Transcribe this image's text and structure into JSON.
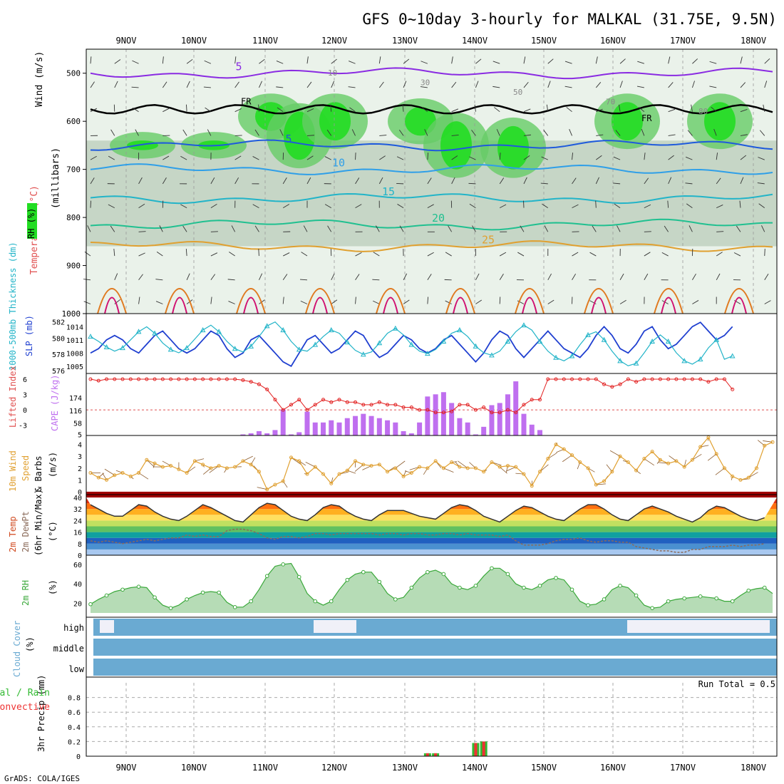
{
  "title": "GFS 0~10day 3-hourly for MALKAL (31.75E, 9.5N)",
  "credit": "GrADS: COLA/IGES",
  "colors": {
    "frame": "#000000",
    "grid": "#aaaaaa",
    "rh_shade": [
      "#eaf2ea",
      "#c6d6c6",
      "#a8c6a8",
      "#66cc66",
      "#22dd22",
      "#00ff00"
    ],
    "temp_contours": "#1e5adc",
    "cape_bar": "#bf6fef",
    "lifted_index": "#e22020",
    "slp": "#1f3fd0",
    "thickness": "#22b4c8",
    "wind10m": "#e0a030",
    "rh2m": "#3aa83a",
    "cloud": "#6aaad2",
    "precip_total": "#33bb33",
    "precip_conv": "#ee3333"
  },
  "time_axis": {
    "labels": [
      "9NOV",
      "10NOV",
      "11NOV",
      "12NOV",
      "13NOV",
      "14NOV",
      "15NOV",
      "16NOV",
      "17NOV",
      "18NOV"
    ]
  },
  "panel_labels": {
    "upper": {
      "rh": "RH (%)",
      "temperature": "Temperature (°C)",
      "wind": "Wind (m/s)",
      "units": "(millibars)"
    },
    "slp": {
      "thickness": "1000-500mb Thickness (dm)",
      "slp": "SLP (mb)"
    },
    "cape": {
      "li": "Lifted Index",
      "cape": "CAPE (J/kg)"
    },
    "wind10": {
      "line1": "10m Wind",
      "line2": "Speed",
      "line3": "& Barbs",
      "unit": "(m/s)"
    },
    "temp2m": {
      "line1": "2m Temp",
      "line2": "2m DewPt",
      "line3": "(6hr Min/Max)",
      "unit": "(°C)"
    },
    "rh2m": {
      "line1": "2m RH",
      "unit": "(%)"
    },
    "cloud": {
      "line1": "Cloud Cover",
      "unit": "(%)",
      "high": "high",
      "middle": "middle",
      "low": "low"
    },
    "precip": {
      "line1": "3hr Precip (mm)",
      "total": "Total / Rain",
      "conv": "Convective",
      "run_total": "Run Total = 0.5"
    }
  },
  "chart_data": [
    {
      "type": "heatmap",
      "name": "pressure-time cross section",
      "y_ticks": [
        500,
        600,
        700,
        800,
        900,
        1000
      ],
      "ylim": [
        1000,
        450
      ],
      "temperature_contours": [
        {
          "label": "5",
          "level_mb": 500
        },
        {
          "label": "5",
          "level_mb": 650
        },
        {
          "label": "10",
          "level_mb": 700
        },
        {
          "label": "15",
          "level_mb": 760
        },
        {
          "label": "20",
          "level_mb": 815
        },
        {
          "label": "25",
          "level_mb": 860
        }
      ],
      "freezing_level_label": "FR",
      "rh_labels": [
        "10",
        "30",
        "50",
        "70",
        "80"
      ]
    },
    {
      "type": "line",
      "name": "SLP and 1000-500mb thickness",
      "left_ticks": [
        576,
        578,
        580,
        582
      ],
      "right_ticks": [
        1005,
        1008,
        1011,
        1014
      ],
      "slp": [
        1008,
        1009,
        1011,
        1012,
        1011,
        1009,
        1008,
        1010,
        1012,
        1013,
        1011,
        1009,
        1008,
        1009,
        1011,
        1013,
        1012,
        1009,
        1007,
        1008,
        1011,
        1012,
        1010,
        1008,
        1006,
        1005,
        1008,
        1011,
        1012,
        1010,
        1008,
        1009,
        1011,
        1013,
        1012,
        1009,
        1007,
        1008,
        1010,
        1012,
        1011,
        1009,
        1008,
        1009,
        1011,
        1012,
        1010,
        1008,
        1006,
        1008,
        1011,
        1013,
        1012,
        1009,
        1007,
        1009,
        1011,
        1013,
        1011,
        1009,
        1008,
        1007,
        1009,
        1012,
        1014,
        1012,
        1009,
        1008,
        1010,
        1013,
        1014,
        1011,
        1009,
        1010,
        1012,
        1014,
        1015,
        1013,
        1011,
        1012,
        1014
      ],
      "thickness": [
        580.2,
        579.6,
        578.9,
        578.4,
        578.8,
        579.8,
        580.8,
        581.4,
        580.6,
        579.4,
        578.6,
        578.2,
        578.8,
        579.9,
        581.0,
        581.6,
        580.8,
        579.6,
        578.7,
        578.3,
        579.0,
        580.2,
        581.5,
        582.0,
        581.0,
        579.6,
        578.6,
        578.4,
        579.2,
        580.2,
        581.0,
        580.6,
        579.5,
        578.5,
        578.0,
        578.3,
        579.4,
        580.6,
        581.2,
        580.4,
        579.2,
        578.4,
        578.1,
        578.6,
        579.6,
        580.6,
        581.0,
        580.2,
        579.0,
        578.2,
        577.9,
        578.4,
        579.6,
        580.8,
        581.6,
        581.0,
        579.6,
        578.4,
        577.6,
        577.2,
        577.8,
        579.2,
        580.4,
        580.8,
        579.8,
        578.4,
        577.2,
        576.6,
        576.9,
        578.2,
        579.6,
        580.4,
        579.6,
        578.2,
        577.2,
        576.8,
        577.4,
        578.8,
        579.8,
        577.4,
        577.8
      ],
      "markers": "triangle"
    },
    {
      "type": "bar",
      "name": "CAPE and Lifted Index",
      "left_ticks": [
        6,
        3,
        0,
        -3
      ],
      "right_ticks": [
        5,
        58,
        116,
        174
      ],
      "cape": [
        0,
        0,
        0,
        0,
        0,
        0,
        0,
        0,
        0,
        0,
        0,
        0,
        0,
        0,
        0,
        0,
        0,
        0,
        0,
        5,
        10,
        20,
        10,
        25,
        120,
        5,
        15,
        110,
        60,
        60,
        70,
        60,
        80,
        90,
        100,
        90,
        80,
        70,
        60,
        20,
        10,
        60,
        180,
        190,
        200,
        150,
        80,
        60,
        5,
        40,
        140,
        150,
        190,
        250,
        100,
        50,
        25,
        0,
        0,
        0,
        0,
        0,
        0,
        0,
        0,
        0,
        0,
        0,
        0,
        0,
        0,
        0,
        0,
        0,
        0,
        0,
        0,
        0,
        0,
        0,
        0
      ],
      "lifted_index": [
        6,
        5.7,
        6,
        6,
        6,
        6,
        6,
        6,
        6,
        6,
        6,
        6,
        6,
        6,
        6,
        6,
        6,
        6,
        6,
        5.8,
        5.5,
        5,
        4,
        2,
        0,
        1,
        2,
        0,
        1,
        2,
        1.5,
        2,
        1.5,
        1.5,
        1,
        1,
        1.5,
        1,
        1,
        0.5,
        0.5,
        0,
        0,
        -0.5,
        -0.5,
        -0.3,
        1,
        1,
        0,
        0.5,
        -0.5,
        -0.5,
        0,
        -0.5,
        1,
        2,
        2,
        6,
        6,
        6,
        6,
        6,
        6,
        6,
        5,
        4.5,
        5,
        6,
        5.5,
        6,
        6,
        6,
        6,
        6,
        6,
        6,
        6,
        5.5,
        6,
        6,
        4
      ]
    },
    {
      "type": "line",
      "name": "10m wind speed",
      "y_ticks": [
        0,
        1,
        2,
        3,
        4
      ],
      "values": [
        1.6,
        1.2,
        1.0,
        1.4,
        1.6,
        1.3,
        1.6,
        2.7,
        2.4,
        2.1,
        2.2,
        1.9,
        1.6,
        2.6,
        2.3,
        2.0,
        2.2,
        2.0,
        2.1,
        2.6,
        2.3,
        1.7,
        0.2,
        0.6,
        0.9,
        2.9,
        2.6,
        1.5,
        2.1,
        1.5,
        0.7,
        1.5,
        1.8,
        2.6,
        2.3,
        2.2,
        2.3,
        1.7,
        2.0,
        1.3,
        1.6,
        2.1,
        2.0,
        2.6,
        2.0,
        2.5,
        2.1,
        2.0,
        2.0,
        1.7,
        2.5,
        2.1,
        2.2,
        2.1,
        1.5,
        0.5,
        1.7,
        2.8,
        4.0,
        3.6,
        3.1,
        2.5,
        2.0,
        0.6,
        0.9,
        1.7,
        3.0,
        2.5,
        1.8,
        2.8,
        3.4,
        2.7,
        2.4,
        2.6,
        2.1,
        2.7,
        3.8,
        4.6,
        3.2,
        2.0,
        1.3,
        1.0,
        1.2,
        2.0,
        3.9,
        4.2
      ]
    },
    {
      "type": "area",
      "name": "2m temperature",
      "y_ticks": [
        0,
        8,
        16,
        24,
        32,
        40
      ],
      "temp": [
        35,
        32,
        29,
        27,
        27,
        31,
        35,
        34,
        30,
        27,
        25,
        24,
        27,
        31,
        35,
        33,
        30,
        27,
        24,
        23,
        28,
        33,
        36,
        35,
        31,
        27,
        25,
        24,
        28,
        33,
        35,
        34,
        30,
        27,
        25,
        24,
        28,
        31,
        31,
        31,
        29,
        27,
        26,
        25,
        29,
        33,
        35,
        34,
        31,
        27,
        25,
        23,
        27,
        31,
        34,
        33,
        30,
        27,
        25,
        24,
        28,
        32,
        35,
        35,
        32,
        28,
        25,
        24,
        28,
        32,
        34,
        32,
        30,
        27,
        25,
        23,
        26,
        31,
        34,
        33,
        30,
        27,
        25,
        24,
        26
      ],
      "dewpoint": [
        10,
        9,
        10,
        9,
        8,
        9,
        10,
        11,
        10,
        11,
        12,
        12,
        14,
        13,
        14,
        13,
        13,
        17,
        18,
        18,
        17,
        15,
        12,
        11,
        13,
        13,
        12,
        13,
        15,
        15,
        14,
        15,
        15,
        15,
        15,
        15,
        14,
        15,
        15,
        14,
        15,
        15,
        14,
        14,
        15,
        15,
        14,
        15,
        14,
        14,
        14,
        13,
        14,
        10,
        7,
        7,
        7,
        8,
        10,
        11,
        11,
        12,
        10,
        9,
        10,
        10,
        9,
        9,
        6,
        5,
        4,
        3,
        3,
        2,
        2,
        4,
        4,
        6,
        6,
        6,
        7,
        6,
        7,
        7,
        8
      ]
    },
    {
      "type": "area",
      "name": "2m RH",
      "y_ticks": [
        20,
        40,
        60
      ],
      "values": [
        19,
        24,
        28,
        32,
        34,
        36,
        37,
        36,
        26,
        18,
        15,
        18,
        24,
        28,
        31,
        32,
        31,
        21,
        16,
        16,
        22,
        34,
        48,
        58,
        60,
        61,
        47,
        30,
        22,
        18,
        22,
        34,
        44,
        50,
        52,
        52,
        42,
        30,
        24,
        26,
        36,
        46,
        52,
        54,
        50,
        40,
        36,
        34,
        38,
        48,
        56,
        56,
        50,
        40,
        36,
        34,
        38,
        44,
        46,
        44,
        34,
        22,
        18,
        19,
        24,
        34,
        38,
        36,
        28,
        18,
        15,
        16,
        22,
        24,
        25,
        26,
        27,
        26,
        25,
        22,
        22,
        28,
        33,
        35,
        36,
        30
      ]
    },
    {
      "type": "heatmap",
      "name": "cloud cover",
      "rows": [
        "high",
        "middle",
        "low"
      ]
    },
    {
      "type": "bar",
      "name": "3hr precip",
      "y_ticks": [
        0,
        0.2,
        0.4,
        0.6,
        0.8
      ],
      "events": [
        {
          "step": 42,
          "total": 0.04,
          "convective": 0.04
        },
        {
          "step": 43,
          "total": 0.04,
          "convective": 0.04
        },
        {
          "step": 48,
          "total": 0.18,
          "convective": 0.18
        },
        {
          "step": 49,
          "total": 0.2,
          "convective": 0.2
        }
      ]
    }
  ]
}
